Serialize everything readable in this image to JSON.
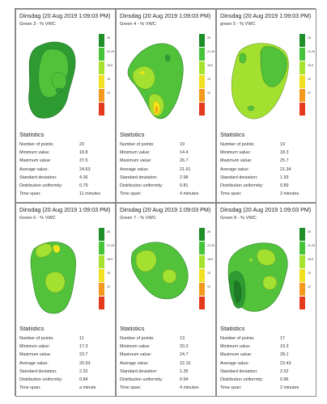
{
  "panels": [
    {
      "title": "Dinsdag (20 Aug 2019 1:09:03 PM)",
      "subtitle": "Green 3 - % VWC",
      "stats_heading": "Statistics",
      "stats": [
        {
          "label": "Number of points:",
          "value": "20"
        },
        {
          "label": "Minimum value:",
          "value": "18.8"
        },
        {
          "label": "Maximum value:",
          "value": "37.5"
        },
        {
          "label": "Average value:",
          "value": "24.63"
        },
        {
          "label": "Standard deviation:",
          "value": "4.36"
        },
        {
          "label": "Distribution uniformity:",
          "value": "0.79"
        },
        {
          "label": "Time span:",
          "value": "11 minutes"
        }
      ]
    },
    {
      "title": "Dinsdag (20 Aug 2019 1:09:03 PM)",
      "subtitle": "Green 4 - % VWC",
      "stats_heading": "Statistics",
      "stats": [
        {
          "label": "Number of points:",
          "value": "19"
        },
        {
          "label": "Minimum value:",
          "value": "14.4"
        },
        {
          "label": "Maximum value:",
          "value": "26.7"
        },
        {
          "label": "Average value:",
          "value": "21.91"
        },
        {
          "label": "Standard deviation:",
          "value": "2.98"
        },
        {
          "label": "Distribution uniformity:",
          "value": "0.81"
        },
        {
          "label": "Time span:",
          "value": "4 minutes"
        }
      ]
    },
    {
      "title": "Dinsdag (20 Aug 2019 1:09:03 PM)",
      "subtitle": "green 5 - % VWC",
      "stats_heading": "Statistics",
      "stats": [
        {
          "label": "Number of points:",
          "value": "19"
        },
        {
          "label": "Minimum value:",
          "value": "18.3"
        },
        {
          "label": "Maximum value:",
          "value": "25.7"
        },
        {
          "label": "Average value:",
          "value": "21.34"
        },
        {
          "label": "Standard deviation:",
          "value": "1.93"
        },
        {
          "label": "Distribution uniformity:",
          "value": "0.89"
        },
        {
          "label": "Time span:",
          "value": "3 minutes"
        }
      ]
    },
    {
      "title": "Dinsdag (20 Aug 2019 1:09:03 PM)",
      "subtitle": "Green 6 - % VWC",
      "stats_heading": "Statistics",
      "stats": [
        {
          "label": "Number of points:",
          "value": "11"
        },
        {
          "label": "Minimum value:",
          "value": "17.3"
        },
        {
          "label": "Maximum value:",
          "value": "23.7"
        },
        {
          "label": "Average value:",
          "value": "20.93"
        },
        {
          "label": "Standard deviation:",
          "value": "2.32"
        },
        {
          "label": "Distribution uniformity:",
          "value": "0.84"
        },
        {
          "label": "Time span:",
          "value": "a minute"
        }
      ]
    },
    {
      "title": "Dinsdag (20 Aug 2019 1:09:03 PM)",
      "subtitle": "Green 7 - % VWC",
      "stats_heading": "Statistics",
      "stats": [
        {
          "label": "Number of points:",
          "value": "13"
        },
        {
          "label": "Minimum value:",
          "value": "20.3"
        },
        {
          "label": "Maximum value:",
          "value": "24.7"
        },
        {
          "label": "Average value:",
          "value": "22.15"
        },
        {
          "label": "Standard deviation:",
          "value": "1.35"
        },
        {
          "label": "Distribution uniformity:",
          "value": "0.94"
        },
        {
          "label": "Time span:",
          "value": "4 minutes"
        }
      ]
    },
    {
      "title": "Dinsdag (20 Aug 2019 1:09:03 PM)",
      "subtitle": "Green 8 - % VWC",
      "stats_heading": "Statistics",
      "stats": [
        {
          "label": "Number of points:",
          "value": "17"
        },
        {
          "label": "Minimum value:",
          "value": "19.3"
        },
        {
          "label": "Maximum value:",
          "value": "28.1"
        },
        {
          "label": "Average value:",
          "value": "23.43"
        },
        {
          "label": "Standard deviation:",
          "value": "2.52"
        },
        {
          "label": "Distribution uniformity:",
          "value": "0.86"
        },
        {
          "label": "Time span:",
          "value": "2 minutes"
        }
      ]
    }
  ],
  "legend": {
    "labels": [
      "25",
      "21.25",
      "18.5",
      "15",
      "12"
    ],
    "colors": [
      "#1f8f2a",
      "#45c43a",
      "#a6e22e",
      "#f0e020",
      "#f39a1e",
      "#e63a1c"
    ]
  },
  "map_colors": {
    "dark_green": "#2e9a32",
    "green": "#52c23a",
    "light_green": "#a3e030",
    "yellow": "#f2e418",
    "orange": "#f0a21c"
  }
}
